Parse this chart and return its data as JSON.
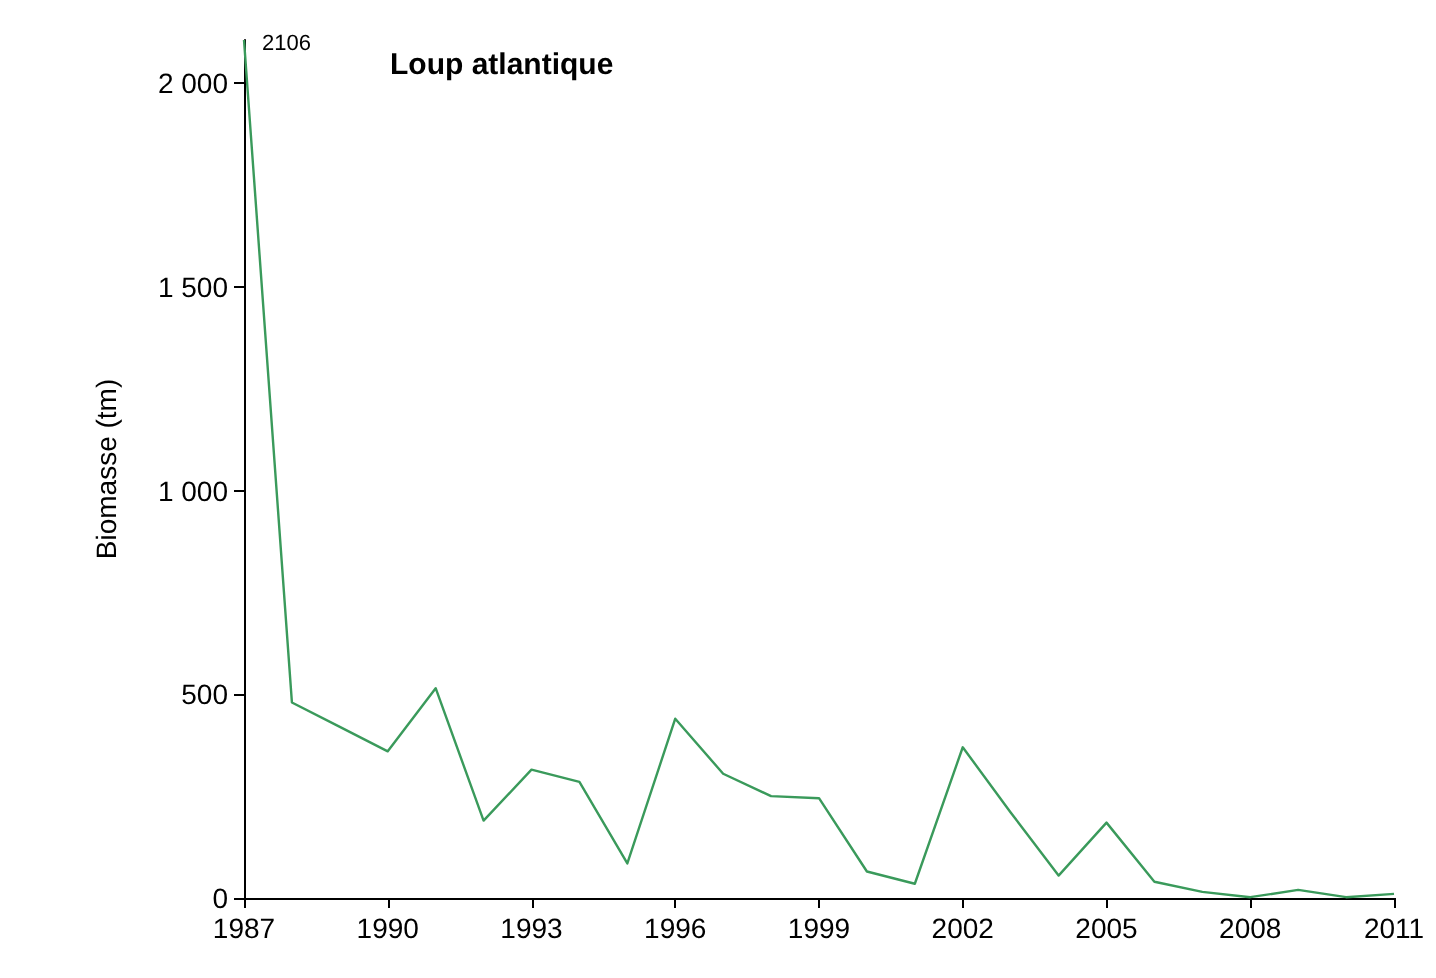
{
  "chart_data": {
    "type": "line",
    "title": "Loup atlantique",
    "ylabel": "Biomasse (tm)",
    "x": [
      1987,
      1988,
      1989,
      1990,
      1991,
      1992,
      1993,
      1994,
      1995,
      1996,
      1997,
      1998,
      1999,
      2000,
      2001,
      2002,
      2003,
      2004,
      2005,
      2006,
      2007,
      2008,
      2009,
      2010,
      2011
    ],
    "series": [
      {
        "color": "#3a9a5b",
        "values": [
          2106,
          480,
          420,
          360,
          515,
          190,
          315,
          285,
          85,
          440,
          305,
          250,
          245,
          65,
          35,
          370,
          210,
          55,
          185,
          40,
          15,
          2,
          20,
          2,
          10
        ],
        "value_labels": [
          "2106",
          null,
          null,
          null,
          null,
          null,
          null,
          null,
          null,
          null,
          null,
          null,
          null,
          null,
          null,
          null,
          null,
          null,
          null,
          null,
          null,
          null,
          null,
          null,
          null
        ]
      }
    ],
    "xlim": [
      1987,
      2011
    ],
    "xticks": [
      1987,
      1990,
      1993,
      1996,
      1999,
      2002,
      2005,
      2008,
      2011
    ],
    "ylim": [
      0,
      2106
    ],
    "yticks": [
      0,
      500,
      {
        "value": 1000,
        "label": "1 000"
      },
      {
        "value": 1500,
        "label": "1 500"
      },
      {
        "value": 2000,
        "label": "2 000"
      }
    ],
    "grid": false,
    "marker": "none",
    "line_style": "solid"
  }
}
